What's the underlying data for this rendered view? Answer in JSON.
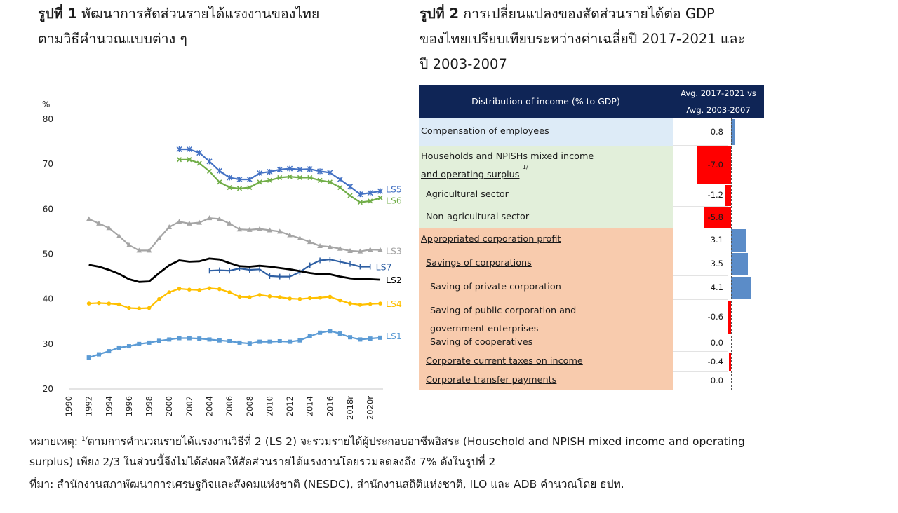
{
  "figure1": {
    "title_bold": "รูปที่ 1",
    "title_line1": "พัฒนาการสัดส่วนรายได้แรงงานของไทย",
    "title_line2": "ตามวิธีคำนวณแบบต่าง ๆ"
  },
  "figure2": {
    "title_bold": "รูปที่ 2",
    "title_line1": "การเปลี่ยนแปลงของสัดส่วนรายได้ต่อ GDP",
    "title_line2": "ของไทยเปรียบเทียบระหว่างค่าเฉลี่ยปี 2017-2021 และ",
    "title_line3": "ปี 2003-2007"
  },
  "chart_data": [
    {
      "type": "line",
      "title": "พัฒนาการสัดส่วนรายได้แรงงานของไทยตามวิธีคำนวณแบบต่าง ๆ",
      "ylabel": "%",
      "xlabel": "",
      "ylim": [
        20,
        80
      ],
      "yticks": [
        20,
        30,
        40,
        50,
        60,
        70,
        80
      ],
      "xlim": [
        1990,
        2021
      ],
      "x_tick_labels": [
        "1990",
        "1992",
        "1994",
        "1996",
        "1998",
        "2000",
        "2002",
        "2004",
        "2006",
        "2008",
        "2010",
        "2012",
        "2014",
        "2016",
        "2018r",
        "2020r"
      ],
      "x_tick_values": [
        1990,
        1992,
        1994,
        1996,
        1998,
        2000,
        2002,
        2004,
        2006,
        2008,
        2010,
        2012,
        2014,
        2016,
        2018,
        2020
      ],
      "series": [
        {
          "name": "LS5",
          "color": "#4472c4",
          "marker": "star",
          "x": [
            2001,
            2002,
            2003,
            2004,
            2005,
            2006,
            2007,
            2008,
            2009,
            2010,
            2011,
            2012,
            2013,
            2014,
            2015,
            2016,
            2017,
            2018,
            2019,
            2020,
            2021
          ],
          "values": [
            73.3,
            73.3,
            72.5,
            70.6,
            68.5,
            67.0,
            66.6,
            66.6,
            68.0,
            68.3,
            68.8,
            69.0,
            68.8,
            68.9,
            68.4,
            68.1,
            66.6,
            65.0,
            63.3,
            63.6,
            64.0
          ]
        },
        {
          "name": "LS6",
          "color": "#70ad47",
          "marker": "x",
          "x": [
            2001,
            2002,
            2003,
            2004,
            2005,
            2006,
            2007,
            2008,
            2009,
            2010,
            2011,
            2012,
            2013,
            2014,
            2015,
            2016,
            2017,
            2018,
            2019,
            2020,
            2021
          ],
          "values": [
            71.0,
            71.0,
            70.2,
            68.4,
            66.0,
            64.8,
            64.6,
            64.8,
            66.0,
            66.4,
            67.0,
            67.2,
            67.0,
            67.0,
            66.4,
            66.0,
            64.8,
            63.0,
            61.5,
            61.8,
            62.5
          ]
        },
        {
          "name": "LS3",
          "color": "#a5a5a5",
          "marker": "triangle",
          "x": [
            1992,
            1993,
            1994,
            1995,
            1996,
            1997,
            1998,
            1999,
            2000,
            2001,
            2002,
            2003,
            2004,
            2005,
            2006,
            2007,
            2008,
            2009,
            2010,
            2011,
            2012,
            2013,
            2014,
            2015,
            2016,
            2017,
            2018,
            2019,
            2020,
            2021
          ],
          "values": [
            57.8,
            56.8,
            55.8,
            54.0,
            52.0,
            50.8,
            50.8,
            53.5,
            56.0,
            57.2,
            56.8,
            57.0,
            58.0,
            57.8,
            56.8,
            55.5,
            55.4,
            55.6,
            55.3,
            55.0,
            54.2,
            53.5,
            52.7,
            51.8,
            51.6,
            51.2,
            50.7,
            50.6,
            51.0,
            50.9
          ]
        },
        {
          "name": "LS7",
          "color": "#2e5fa3",
          "marker": "dash",
          "x": [
            2004,
            2005,
            2006,
            2007,
            2008,
            2009,
            2010,
            2011,
            2012,
            2013,
            2014,
            2015,
            2016,
            2017,
            2018,
            2019,
            2020
          ],
          "values": [
            46.3,
            46.4,
            46.3,
            46.8,
            46.5,
            46.6,
            45.1,
            45.0,
            45.0,
            46.0,
            47.5,
            48.6,
            48.8,
            48.3,
            47.8,
            47.2,
            47.2
          ]
        },
        {
          "name": "LS2",
          "color": "#000000",
          "marker": "none",
          "x": [
            1992,
            1993,
            1994,
            1995,
            1996,
            1997,
            1998,
            1999,
            2000,
            2001,
            2002,
            2003,
            2004,
            2005,
            2006,
            2007,
            2008,
            2009,
            2010,
            2011,
            2012,
            2013,
            2014,
            2015,
            2016,
            2017,
            2018,
            2019,
            2020,
            2021
          ],
          "values": [
            47.6,
            47.2,
            46.5,
            45.6,
            44.4,
            43.8,
            43.9,
            45.8,
            47.5,
            48.6,
            48.3,
            48.4,
            49.0,
            48.8,
            48.0,
            47.3,
            47.2,
            47.4,
            47.2,
            46.9,
            46.6,
            46.2,
            45.8,
            45.5,
            45.5,
            45.0,
            44.6,
            44.4,
            44.4,
            44.3
          ]
        },
        {
          "name": "LS4",
          "color": "#ffc000",
          "marker": "circle",
          "x": [
            1992,
            1993,
            1994,
            1995,
            1996,
            1997,
            1998,
            1999,
            2000,
            2001,
            2002,
            2003,
            2004,
            2005,
            2006,
            2007,
            2008,
            2009,
            2010,
            2011,
            2012,
            2013,
            2014,
            2015,
            2016,
            2017,
            2018,
            2019,
            2020,
            2021
          ],
          "values": [
            39.0,
            39.1,
            39.0,
            38.8,
            38.0,
            37.9,
            38.0,
            40.0,
            41.5,
            42.3,
            42.1,
            42.0,
            42.4,
            42.2,
            41.5,
            40.5,
            40.4,
            40.9,
            40.6,
            40.4,
            40.1,
            40.0,
            40.2,
            40.3,
            40.5,
            39.7,
            39.0,
            38.7,
            38.9,
            39.0
          ]
        },
        {
          "name": "LS1",
          "color": "#5b9bd5",
          "marker": "square",
          "x": [
            1992,
            1993,
            1994,
            1995,
            1996,
            1997,
            1998,
            1999,
            2000,
            2001,
            2002,
            2003,
            2004,
            2005,
            2006,
            2007,
            2008,
            2009,
            2010,
            2011,
            2012,
            2013,
            2014,
            2015,
            2016,
            2017,
            2018,
            2019,
            2020,
            2021
          ],
          "values": [
            27.0,
            27.7,
            28.4,
            29.2,
            29.5,
            30.0,
            30.3,
            30.7,
            31.0,
            31.3,
            31.3,
            31.2,
            31.0,
            30.8,
            30.6,
            30.3,
            30.1,
            30.5,
            30.5,
            30.6,
            30.5,
            30.8,
            31.7,
            32.5,
            32.9,
            32.3,
            31.5,
            31.0,
            31.2,
            31.4
          ]
        }
      ]
    },
    {
      "type": "bar",
      "orientation": "horizontal",
      "title": "การเปลี่ยนแปลงของสัดส่วนรายได้ต่อ GDP ของไทยเปรียบเทียบระหว่างค่าเฉลี่ยปี 2017-2021 และปี 2003-2007",
      "header_label": "Distribution of income (% to GDP)",
      "header_value_line1": "Avg. 2017-2021 vs",
      "header_value_line2": "Avg. 2003-2007",
      "categories": [
        "Compensation of employees",
        "Households and NPISHs mixed income and operating surplus 1/",
        "Agricultural sector",
        "Non-agricultural sector",
        "Appropriated corporation profit",
        "Savings of corporations",
        "Saving of private corporation",
        "Saving of public corporation and government enterprises",
        "Saving of cooperatives",
        "Corporate current taxes on income",
        "Corporate transfer payments"
      ],
      "values": [
        0.8,
        -7.0,
        -1.2,
        -5.8,
        3.1,
        3.5,
        4.1,
        -0.6,
        0.0,
        -0.4,
        0.0
      ],
      "positive_color": "#5b8cc8",
      "negative_color": "#ff0000"
    }
  ],
  "table": {
    "rows": [
      {
        "line1": "Compensation of employees",
        "value": "0.8"
      },
      {
        "line1": "Households and NPISHs mixed income",
        "line2": "and operating surplus",
        "sup": "1/",
        "value": "-7.0"
      },
      {
        "line1": "Agricultural sector",
        "value": "-1.2"
      },
      {
        "line1": "Non-agricultural sector",
        "value": "-5.8"
      },
      {
        "line1": "Appropriated corporation profit",
        "value": "3.1"
      },
      {
        "line1": "Savings of corporations",
        "value": "3.5"
      },
      {
        "line1": "Saving of private corporation",
        "value": "4.1"
      },
      {
        "line1": "Saving of public corporation and",
        "line2": "government enterprises",
        "value": "-0.6"
      },
      {
        "line1": "Saving of cooperatives",
        "value": "0.0"
      },
      {
        "line1": "Corporate current taxes on income",
        "value": "-0.4"
      },
      {
        "line1": "Corporate transfer payments",
        "value": "0.0"
      }
    ]
  },
  "notes": {
    "note_label": "หมายเหตุ:",
    "note_sup": "1/",
    "note_line1": "ตามการคำนวณรายได้แรงงานวิธีที่ 2 (LS 2) จะรวมรายได้ผู้ประกอบอาชีพอิสระ (Household and NPISH mixed income and operating",
    "note_line2": "surplus) เพียง 2/3 ในส่วนนี้จึงไม่ได้ส่งผลให้สัดส่วนรายได้แรงงานโดยรวมลดลงถึง 7% ดังในรูปที่ 2",
    "source": "ที่มา: สำนักงานสภาพัฒนาการเศรษฐกิจและสังคมแห่งชาติ (NESDC), สำนักงานสถิติแห่งชาติ, ILO และ ADB คำนวณโดย ธปท."
  }
}
